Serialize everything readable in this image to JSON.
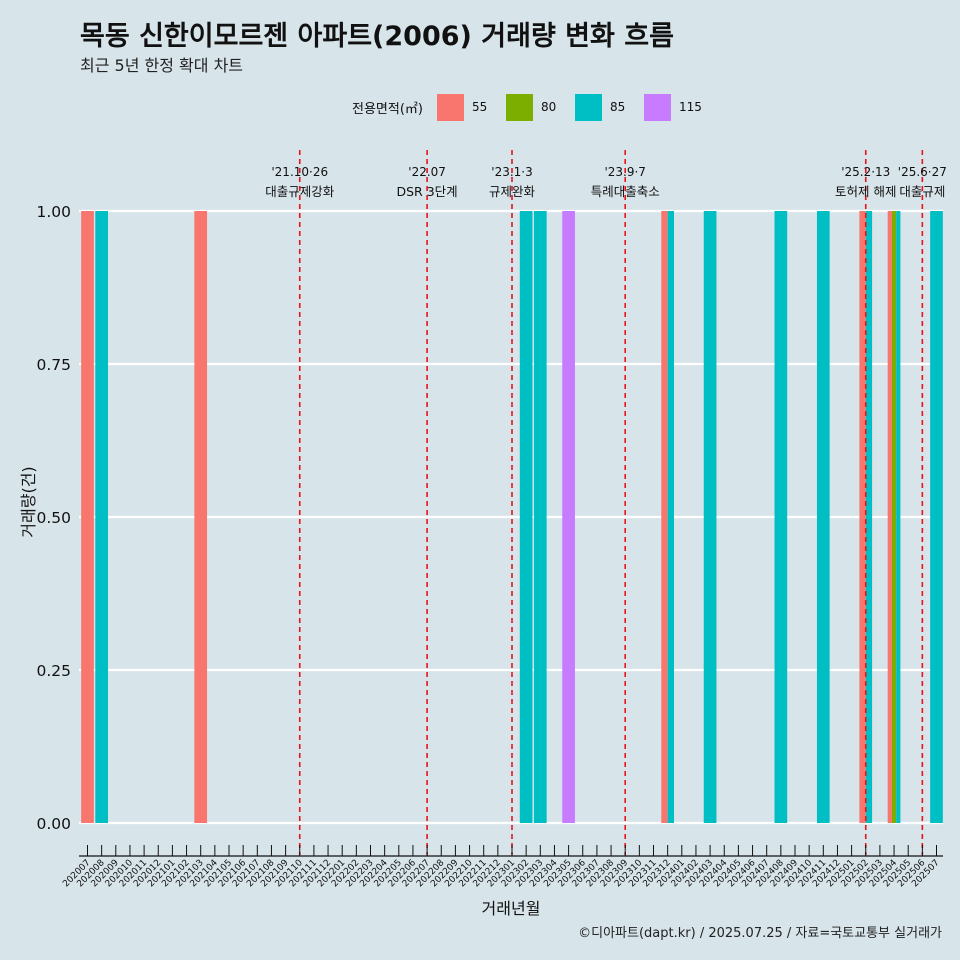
{
  "title": "목동 신한이모르젠 아파트(2006) 거래량 변화 흐름",
  "subtitle": "최근 5년 한정 확대 차트",
  "caption": "©디아파트(dapt.kr) / 2025.07.25 / 자료=국토교통부 실거래가",
  "chart_data": {
    "type": "bar",
    "xlabel": "거래년월",
    "ylabel": "거래량(건)",
    "ylim": [
      0,
      1
    ],
    "y_ticks": [
      "0.00",
      "0.25",
      "0.50",
      "0.75",
      "1.00"
    ],
    "grid": true,
    "legend": {
      "title": "전용면적(㎡)",
      "placement": "top",
      "entries": [
        {
          "name": "55",
          "color": "#F8766D"
        },
        {
          "name": "80",
          "color": "#7CAE00"
        },
        {
          "name": "85",
          "color": "#00BFC4"
        },
        {
          "name": "115",
          "color": "#C77CFF"
        }
      ]
    },
    "categories": [
      "202007",
      "202008",
      "202009",
      "202010",
      "202011",
      "202012",
      "202101",
      "202102",
      "202103",
      "202104",
      "202105",
      "202106",
      "202107",
      "202108",
      "202109",
      "202110",
      "202111",
      "202112",
      "202201",
      "202202",
      "202203",
      "202204",
      "202205",
      "202206",
      "202207",
      "202208",
      "202209",
      "202210",
      "202211",
      "202212",
      "202301",
      "202302",
      "202303",
      "202304",
      "202305",
      "202306",
      "202307",
      "202308",
      "202309",
      "202310",
      "202311",
      "202312",
      "202401",
      "202402",
      "202403",
      "202404",
      "202405",
      "202406",
      "202407",
      "202408",
      "202409",
      "202410",
      "202411",
      "202412",
      "202501",
      "202502",
      "202503",
      "202504",
      "202505",
      "202506",
      "202507"
    ],
    "bars": [
      {
        "month": "202007",
        "area": "55",
        "value": 1
      },
      {
        "month": "202008",
        "area": "85",
        "value": 1
      },
      {
        "month": "202103",
        "area": "55",
        "value": 1
      },
      {
        "month": "202302",
        "area": "85",
        "value": 1
      },
      {
        "month": "202303",
        "area": "85",
        "value": 1
      },
      {
        "month": "202305",
        "area": "115",
        "value": 1
      },
      {
        "month": "202312",
        "area": "55",
        "value": 1,
        "group_size": 2,
        "slot": 0
      },
      {
        "month": "202312",
        "area": "85",
        "value": 1,
        "group_size": 2,
        "slot": 1
      },
      {
        "month": "202403",
        "area": "85",
        "value": 1
      },
      {
        "month": "202408",
        "area": "85",
        "value": 1
      },
      {
        "month": "202411",
        "area": "85",
        "value": 1
      },
      {
        "month": "202502",
        "area": "55",
        "value": 1,
        "group_size": 2,
        "slot": 0
      },
      {
        "month": "202502",
        "area": "85",
        "value": 1,
        "group_size": 2,
        "slot": 1
      },
      {
        "month": "202504",
        "area": "55",
        "value": 1,
        "group_size": 3,
        "slot": 0
      },
      {
        "month": "202504",
        "area": "80",
        "value": 1,
        "group_size": 3,
        "slot": 1
      },
      {
        "month": "202504",
        "area": "85",
        "value": 1,
        "group_size": 3,
        "slot": 2
      },
      {
        "month": "202507",
        "area": "85",
        "value": 1
      }
    ],
    "annotations": [
      {
        "month": "202110",
        "date": "'21.10·26",
        "label": "대출규제강화"
      },
      {
        "month": "202207",
        "date": "'22.07",
        "label": "DSR 3단계"
      },
      {
        "month": "202301",
        "date": "'23.1·3",
        "label": "규제완화"
      },
      {
        "month": "202309",
        "date": "'23.9·7",
        "label": "특례대출축소"
      },
      {
        "month": "202502",
        "date": "'25.2·13",
        "label": "토허제 해제"
      },
      {
        "month": "202506",
        "date": "'25.6·27",
        "label": "대출규제"
      }
    ]
  }
}
